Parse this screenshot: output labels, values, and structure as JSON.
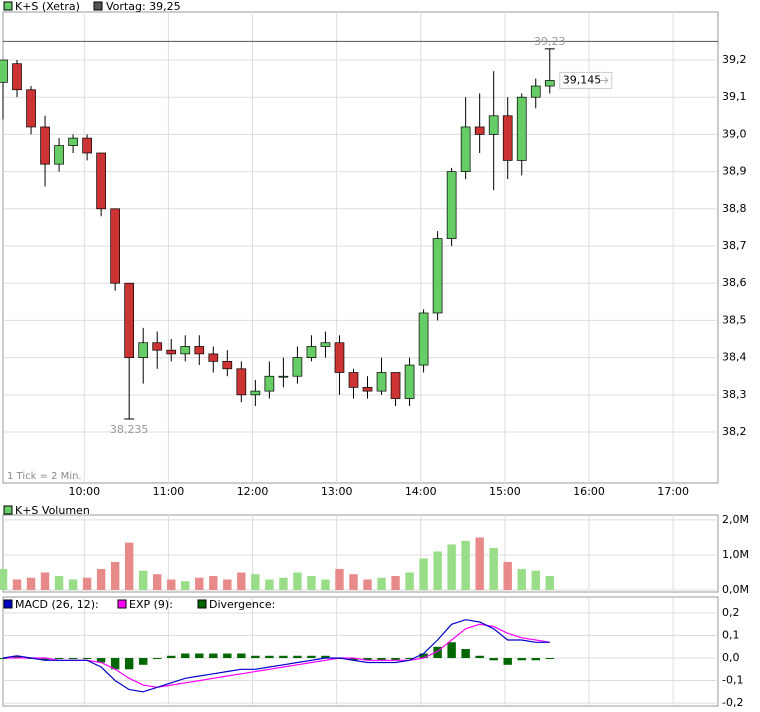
{
  "chart_data": [
    {
      "type": "candlestick",
      "name": "K+S (Xetra)",
      "up_color": "#66cc66",
      "down_color": "#cc3333",
      "prev_close_label": "Vortag: 39,25",
      "prev_close": 39.25,
      "prev_color": "#555555",
      "note": "1 Tick = 2 Min.",
      "x": [
        "09:02",
        "09:12",
        "09:22",
        "09:32",
        "09:42",
        "09:52",
        "10:02",
        "10:12",
        "10:22",
        "10:32",
        "10:42",
        "10:52",
        "11:02",
        "11:12",
        "11:22",
        "11:32",
        "11:42",
        "11:52",
        "12:02",
        "12:12",
        "12:22",
        "12:32",
        "12:42",
        "12:52",
        "13:02",
        "13:12",
        "13:22",
        "13:32",
        "13:42",
        "13:52",
        "14:02",
        "14:12",
        "14:22",
        "14:32",
        "14:42",
        "14:52",
        "15:02",
        "15:12",
        "15:22",
        "15:32"
      ],
      "open": [
        39.14,
        39.19,
        39.12,
        39.02,
        38.92,
        38.97,
        38.99,
        38.95,
        38.8,
        38.6,
        38.4,
        38.44,
        38.42,
        38.41,
        38.43,
        38.41,
        38.39,
        38.37,
        38.3,
        38.31,
        38.35,
        38.35,
        38.4,
        38.43,
        38.44,
        38.36,
        38.32,
        38.31,
        38.36,
        38.29,
        38.38,
        38.52,
        38.72,
        38.9,
        39.02,
        39.0,
        39.05,
        38.93,
        39.1,
        39.13
      ],
      "high": [
        39.2,
        39.2,
        39.13,
        39.05,
        38.99,
        39.0,
        39.0,
        38.95,
        38.8,
        38.6,
        38.48,
        38.47,
        38.45,
        38.46,
        38.46,
        38.43,
        38.42,
        38.39,
        38.34,
        38.39,
        38.4,
        38.43,
        38.46,
        38.47,
        38.46,
        38.37,
        38.35,
        38.4,
        38.36,
        38.4,
        38.53,
        38.74,
        38.91,
        39.1,
        39.11,
        39.17,
        39.1,
        39.11,
        39.15,
        39.23
      ],
      "low": [
        39.04,
        39.1,
        39.0,
        38.86,
        38.9,
        38.95,
        38.93,
        38.78,
        38.58,
        38.235,
        38.33,
        38.37,
        38.39,
        38.39,
        38.38,
        38.36,
        38.35,
        38.28,
        38.27,
        38.29,
        38.32,
        38.33,
        38.39,
        38.4,
        38.3,
        38.29,
        38.29,
        38.3,
        38.27,
        38.27,
        38.36,
        38.5,
        38.7,
        38.88,
        38.95,
        38.85,
        38.88,
        38.89,
        39.07,
        39.11
      ],
      "close": [
        39.2,
        39.12,
        39.02,
        38.92,
        38.97,
        38.99,
        38.95,
        38.8,
        38.6,
        38.4,
        38.44,
        38.42,
        38.41,
        38.43,
        38.41,
        38.39,
        38.37,
        38.3,
        38.31,
        38.35,
        38.35,
        38.4,
        38.43,
        38.44,
        38.36,
        38.32,
        38.31,
        38.36,
        38.29,
        38.38,
        38.52,
        38.72,
        38.9,
        39.02,
        39.0,
        39.05,
        38.93,
        39.1,
        39.13,
        39.145
      ],
      "high_label": "39,23",
      "low_label": "38,235",
      "last_label": "39,145",
      "xlim": [
        "09:02",
        "17:32"
      ],
      "xticks": [
        "10:00",
        "11:00",
        "12:00",
        "13:00",
        "14:00",
        "15:00",
        "16:00",
        "17:00"
      ],
      "ylim": [
        38.063,
        39.329
      ],
      "yticks": [
        {
          "value": 38.2,
          "label": "38,2"
        },
        {
          "value": 38.3,
          "label": "38,3"
        },
        {
          "value": 38.4,
          "label": "38,4"
        },
        {
          "value": 38.5,
          "label": "38,5"
        },
        {
          "value": 38.6,
          "label": "38,6"
        },
        {
          "value": 38.7,
          "label": "38,7"
        },
        {
          "value": 38.8,
          "label": "38,8"
        },
        {
          "value": 38.9,
          "label": "38,9"
        },
        {
          "value": 39.0,
          "label": "39,0"
        },
        {
          "value": 39.1,
          "label": "39,1"
        },
        {
          "value": 39.2,
          "label": "39,2"
        }
      ],
      "grid": true
    },
    {
      "type": "bar",
      "name": "K+S Volumen",
      "color": "#66cc66",
      "up_color": "#99dd88",
      "down_color": "#e88a8a",
      "x": [
        "09:02",
        "09:12",
        "09:22",
        "09:32",
        "09:42",
        "09:52",
        "10:02",
        "10:12",
        "10:22",
        "10:32",
        "10:42",
        "10:52",
        "11:02",
        "11:12",
        "11:22",
        "11:32",
        "11:42",
        "11:52",
        "12:02",
        "12:12",
        "12:22",
        "12:32",
        "12:42",
        "12:52",
        "13:02",
        "13:12",
        "13:22",
        "13:32",
        "13:42",
        "13:52",
        "14:02",
        "14:12",
        "14:22",
        "14:32",
        "14:42",
        "14:52",
        "15:02",
        "15:12",
        "15:22",
        "15:32"
      ],
      "values": [
        600000,
        300000,
        350000,
        500000,
        400000,
        300000,
        350000,
        600000,
        800000,
        1350000,
        550000,
        450000,
        300000,
        250000,
        350000,
        400000,
        300000,
        500000,
        450000,
        300000,
        350000,
        500000,
        400000,
        300000,
        600000,
        450000,
        300000,
        350000,
        400000,
        500000,
        900000,
        1100000,
        1300000,
        1400000,
        1500000,
        1200000,
        800000,
        600000,
        550000,
        400000
      ],
      "xlim": [
        "09:02",
        "17:32"
      ],
      "xticks": [
        "10:00",
        "11:00",
        "12:00",
        "13:00",
        "14:00",
        "15:00",
        "16:00",
        "17:00"
      ],
      "ylim": [
        0,
        2140000
      ],
      "yticks": [
        {
          "value": 0,
          "label": "0,0M"
        },
        {
          "value": 1000000,
          "label": "1,0M"
        },
        {
          "value": 2000000,
          "label": "2,0M"
        }
      ]
    },
    {
      "type": "macd",
      "x": [
        "09:02",
        "09:12",
        "09:22",
        "09:32",
        "09:42",
        "09:52",
        "10:02",
        "10:12",
        "10:22",
        "10:32",
        "10:42",
        "10:52",
        "11:02",
        "11:12",
        "11:22",
        "11:32",
        "11:42",
        "11:52",
        "12:02",
        "12:12",
        "12:22",
        "12:32",
        "12:42",
        "12:52",
        "13:02",
        "13:12",
        "13:22",
        "13:32",
        "13:42",
        "13:52",
        "14:02",
        "14:12",
        "14:22",
        "14:32",
        "14:42",
        "14:52",
        "15:02",
        "15:12",
        "15:22",
        "15:32"
      ],
      "series": [
        {
          "name": "MACD (26, 12):",
          "color": "#0000cc",
          "values": [
            0.0,
            0.01,
            0.0,
            -0.01,
            -0.01,
            -0.01,
            -0.01,
            -0.04,
            -0.1,
            -0.14,
            -0.15,
            -0.13,
            -0.11,
            -0.09,
            -0.08,
            -0.07,
            -0.06,
            -0.05,
            -0.05,
            -0.04,
            -0.03,
            -0.02,
            -0.01,
            0.0,
            0.0,
            -0.01,
            -0.02,
            -0.02,
            -0.02,
            -0.01,
            0.02,
            0.08,
            0.15,
            0.17,
            0.16,
            0.13,
            0.08,
            0.08,
            0.07,
            0.07
          ]
        },
        {
          "name": "EXP (9):",
          "color": "#ff00ff",
          "values": [
            0.0,
            0.0,
            0.0,
            0.0,
            -0.01,
            -0.01,
            -0.01,
            -0.02,
            -0.05,
            -0.09,
            -0.12,
            -0.13,
            -0.12,
            -0.11,
            -0.1,
            -0.09,
            -0.08,
            -0.07,
            -0.06,
            -0.05,
            -0.04,
            -0.03,
            -0.02,
            -0.01,
            0.0,
            0.0,
            -0.01,
            -0.01,
            -0.01,
            -0.01,
            0.0,
            0.03,
            0.08,
            0.13,
            0.15,
            0.14,
            0.11,
            0.09,
            0.08,
            0.07
          ]
        },
        {
          "name": "Divergence:",
          "color": "#006600",
          "values": [
            0.0,
            0.01,
            0.0,
            -0.01,
            0.0,
            0.0,
            0.0,
            -0.02,
            -0.05,
            -0.05,
            -0.03,
            0.0,
            0.01,
            0.02,
            0.02,
            0.02,
            0.02,
            0.02,
            0.01,
            0.01,
            0.01,
            0.01,
            0.01,
            0.01,
            0.0,
            -0.01,
            -0.01,
            -0.01,
            -0.01,
            0.0,
            0.02,
            0.05,
            0.07,
            0.04,
            0.01,
            -0.01,
            -0.03,
            -0.01,
            -0.01,
            0.0
          ]
        }
      ],
      "xlim": [
        "09:02",
        "17:32"
      ],
      "xticks": [
        "10:00",
        "11:00",
        "12:00",
        "13:00",
        "14:00",
        "15:00",
        "16:00",
        "17:00"
      ],
      "ylim": [
        -0.213,
        0.271
      ],
      "yticks": [
        {
          "value": -0.2,
          "label": "-0,2"
        },
        {
          "value": -0.1,
          "label": "-0,1"
        },
        {
          "value": 0,
          "label": "0,0"
        },
        {
          "value": 0.1,
          "label": "0,1"
        },
        {
          "value": 0.2,
          "label": "0,2"
        }
      ]
    }
  ]
}
